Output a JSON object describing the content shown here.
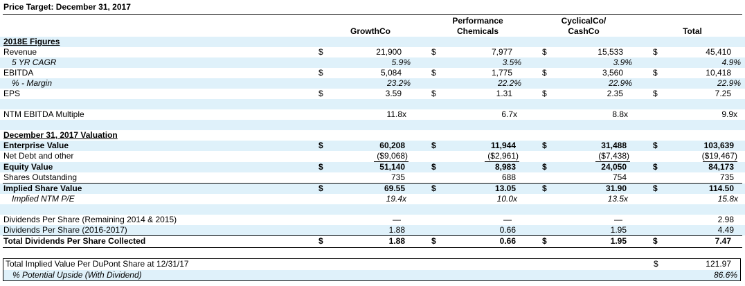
{
  "title": "Price Target: December 31, 2017",
  "columns": {
    "c1": "GrowthCo",
    "c2_line1": "Performance",
    "c2_line2": "Chemicals",
    "c3_line1": "CyclicalCo/",
    "c3_line2": "CashCo",
    "c4": "Total"
  },
  "dollar": "$",
  "sections": {
    "figures": "2018E Figures",
    "valuation": "December 31, 2017 Valuation"
  },
  "rows": [
    {
      "label": "Revenue",
      "values": [
        "21,900",
        "7,977",
        "15,533",
        "45,410"
      ]
    },
    {
      "label": "5 YR CAGR",
      "values": [
        "5.9%",
        "3.5%",
        "3.9%",
        "4.9%"
      ]
    },
    {
      "label": "EBITDA",
      "values": [
        "5,084",
        "1,775",
        "3,560",
        "10,418"
      ]
    },
    {
      "label": "% - Margin",
      "values": [
        "23.2%",
        "22.2%",
        "22.9%",
        "22.9%"
      ]
    },
    {
      "label": "EPS",
      "values": [
        "3.59",
        "1.31",
        "2.35",
        "7.25"
      ]
    },
    {
      "label": "NTM EBITDA Multiple",
      "values": [
        "11.8x",
        "6.7x",
        "8.8x",
        "9.9x"
      ]
    },
    {
      "label": "Enterprise Value",
      "values": [
        "60,208",
        "11,944",
        "31,488",
        "103,639"
      ]
    },
    {
      "label": "Net Debt and other",
      "values": [
        "($9,068)",
        "($2,961)",
        "($7,438)",
        "($19,467)"
      ]
    },
    {
      "label": "Equity Value",
      "values": [
        "51,140",
        "8,983",
        "24,050",
        "84,173"
      ]
    },
    {
      "label": "Shares Outstanding",
      "values": [
        "735",
        "688",
        "754",
        "735"
      ]
    },
    {
      "label": "Implied Share Value",
      "values": [
        "69.55",
        "13.05",
        "31.90",
        "114.50"
      ]
    },
    {
      "label": "Implied NTM P/E",
      "values": [
        "19.4x",
        "10.0x",
        "13.5x",
        "15.8x"
      ]
    },
    {
      "label": "Dividends Per Share (Remaining 2014 & 2015)",
      "values": [
        "—",
        "—",
        "—",
        "2.98"
      ]
    },
    {
      "label": "Dividends Per Share (2016-2017)",
      "values": [
        "1.88",
        "0.66",
        "1.95",
        "4.49"
      ]
    },
    {
      "label": "Total Dividends Per Share Collected",
      "values": [
        "1.88",
        "0.66",
        "1.95",
        "7.47"
      ]
    }
  ],
  "summary": {
    "label1": "Total Implied Value Per DuPont Share at 12/31/17",
    "value1": "121.97",
    "label2": "% Potential Upside (With Dividend)",
    "value2": "86.6%"
  }
}
